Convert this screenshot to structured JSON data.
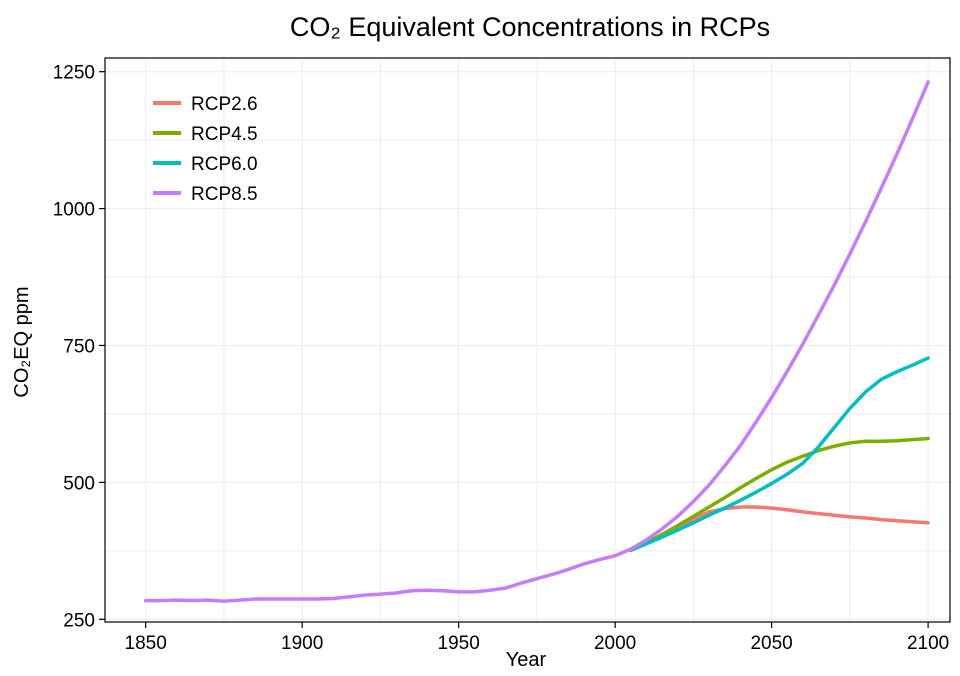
{
  "chart_data": {
    "type": "line",
    "title": "CO₂ Equivalent Concentrations in RCPs",
    "xlabel": "Year",
    "ylabel": "CO₂EQ ppm",
    "xlim": [
      1837,
      2107
    ],
    "ylim": [
      245,
      1275
    ],
    "x_ticks": [
      1850,
      1900,
      1950,
      2000,
      2050,
      2100
    ],
    "y_ticks": [
      250,
      500,
      750,
      1000,
      1250
    ],
    "grid": true,
    "legend_position": "top-left",
    "series": [
      {
        "name": "RCP2.6",
        "color": "#F8766D",
        "x": [
          2005,
          2010,
          2015,
          2020,
          2025,
          2030,
          2035,
          2040,
          2045,
          2050,
          2055,
          2060,
          2065,
          2070,
          2075,
          2080,
          2085,
          2090,
          2095,
          2100
        ],
        "y": [
          376,
          389,
          403,
          418,
          433,
          446,
          452,
          455,
          455,
          453,
          450,
          446,
          443,
          440,
          437,
          435,
          432,
          430,
          428,
          426
        ]
      },
      {
        "name": "RCP4.5",
        "color": "#7CAE00",
        "x": [
          2005,
          2010,
          2015,
          2020,
          2025,
          2030,
          2035,
          2040,
          2045,
          2050,
          2055,
          2060,
          2065,
          2070,
          2075,
          2080,
          2085,
          2090,
          2095,
          2100
        ],
        "y": [
          376,
          390,
          405,
          421,
          438,
          455,
          472,
          490,
          507,
          523,
          537,
          548,
          558,
          566,
          572,
          575,
          575,
          576,
          578,
          580
        ]
      },
      {
        "name": "RCP6.0",
        "color": "#00BFC4",
        "x": [
          2005,
          2010,
          2015,
          2020,
          2025,
          2030,
          2035,
          2040,
          2045,
          2050,
          2055,
          2060,
          2065,
          2070,
          2075,
          2080,
          2085,
          2090,
          2095,
          2100
        ],
        "y": [
          376,
          388,
          400,
          413,
          426,
          440,
          453,
          467,
          482,
          498,
          515,
          535,
          565,
          600,
          635,
          665,
          688,
          702,
          714,
          727
        ]
      },
      {
        "name": "RCP8.5",
        "color": "#C77CFF",
        "x": [
          1850,
          1855,
          1860,
          1865,
          1870,
          1875,
          1880,
          1885,
          1890,
          1895,
          1900,
          1905,
          1910,
          1915,
          1920,
          1925,
          1930,
          1935,
          1940,
          1945,
          1950,
          1955,
          1960,
          1965,
          1970,
          1975,
          1980,
          1985,
          1990,
          1995,
          2000,
          2005,
          2010,
          2015,
          2020,
          2025,
          2030,
          2035,
          2040,
          2045,
          2050,
          2055,
          2060,
          2065,
          2070,
          2075,
          2080,
          2085,
          2090,
          2095,
          2100
        ],
        "y": [
          284,
          284,
          285,
          284,
          285,
          283,
          285,
          287,
          287,
          287,
          287,
          287,
          288,
          291,
          294,
          296,
          298,
          302,
          303,
          302,
          300,
          300,
          303,
          307,
          316,
          324,
          332,
          341,
          351,
          359,
          366,
          378,
          395,
          415,
          438,
          465,
          495,
          530,
          567,
          610,
          655,
          703,
          753,
          806,
          860,
          917,
          976,
          1037,
          1099,
          1164,
          1231
        ]
      }
    ]
  }
}
